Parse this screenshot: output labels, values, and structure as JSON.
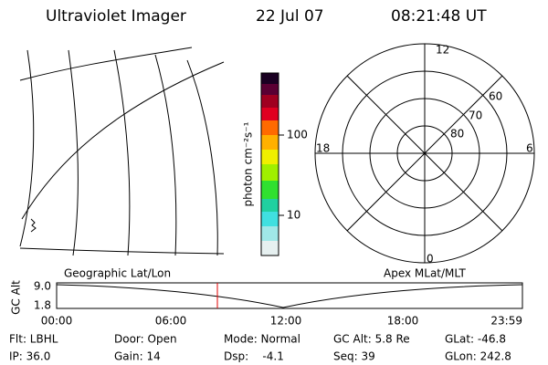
{
  "header": {
    "title": "Ultraviolet Imager",
    "date": "22 Jul 07",
    "time": "08:21:48 UT"
  },
  "colorbar": {
    "label": "photon cm⁻²s⁻¹",
    "ticks": [
      "100",
      "10"
    ]
  },
  "polar": {
    "mlt_labels": [
      "12",
      "18",
      "6",
      "0"
    ],
    "lat_labels": [
      "80",
      "70",
      "60"
    ]
  },
  "altitude_plot": {
    "ylabel": "GC Alt",
    "yticks": [
      "9.0",
      "1.8"
    ],
    "left_title": "Geographic Lat/Lon",
    "right_title": "Apex MLat/MLT",
    "xticks": [
      "00:00",
      "06:00",
      "12:00",
      "18:00",
      "23:59"
    ]
  },
  "info": {
    "rows": [
      [
        "Flt: LBHL",
        "Door: Open",
        "Mode: Normal",
        "GC Alt: 5.8 Re",
        "GLat: -46.8"
      ],
      [
        "IP: 36.0",
        "Gain: 14",
        "Dsp:    -4.1",
        "Seq: 39",
        "GLon: 242.8"
      ]
    ]
  }
}
